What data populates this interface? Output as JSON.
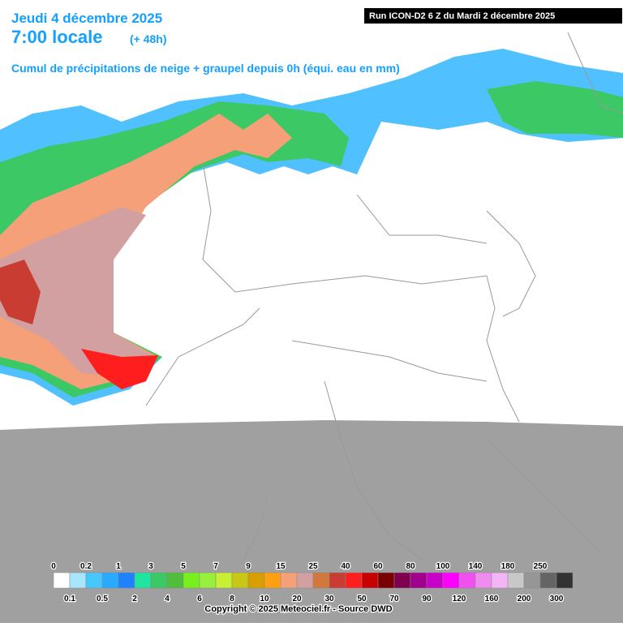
{
  "header": {
    "date": "Jeudi 4 décembre 2025",
    "time": "7:00 locale",
    "lead": "(+ 48h)",
    "subtitle": "Cumul de précipitations de neige + graupel depuis 0h (équi. eau en mm)",
    "run": "Run ICON-D2 6 Z du Mardi 2 décembre 2025"
  },
  "legend": {
    "items": [
      {
        "label": "0",
        "color": "#ffffff"
      },
      {
        "label": "0.1",
        "color": "#a6e6ff"
      },
      {
        "label": "0.2",
        "color": "#46c8ff"
      },
      {
        "label": "0.5",
        "color": "#2aaaff"
      },
      {
        "label": "1",
        "color": "#1e82ff"
      },
      {
        "label": "2",
        "color": "#1ee6a0"
      },
      {
        "label": "3",
        "color": "#3cc864"
      },
      {
        "label": "4",
        "color": "#50be3c"
      },
      {
        "label": "5",
        "color": "#78f01e"
      },
      {
        "label": "6",
        "color": "#96f03c"
      },
      {
        "label": "7",
        "color": "#c8f032"
      },
      {
        "label": "8",
        "color": "#c8c814"
      },
      {
        "label": "9",
        "color": "#d7a000"
      },
      {
        "label": "10",
        "color": "#ffa014"
      },
      {
        "label": "15",
        "color": "#f5a078"
      },
      {
        "label": "20",
        "color": "#d2a0a0"
      },
      {
        "label": "25",
        "color": "#d2783c"
      },
      {
        "label": "30",
        "color": "#c83c32"
      },
      {
        "label": "40",
        "color": "#ff1e1e"
      },
      {
        "label": "50",
        "color": "#c80000"
      },
      {
        "label": "60",
        "color": "#780000"
      },
      {
        "label": "70",
        "color": "#800050"
      },
      {
        "label": "80",
        "color": "#a0008c"
      },
      {
        "label": "90",
        "color": "#c800c8"
      },
      {
        "label": "100",
        "color": "#ff00ff"
      },
      {
        "label": "120",
        "color": "#f050f0"
      },
      {
        "label": "140",
        "color": "#f08cf0"
      },
      {
        "label": "160",
        "color": "#f5b4f5"
      },
      {
        "label": "180",
        "color": "#c8c8c8"
      },
      {
        "label": "200",
        "color": "#969696"
      },
      {
        "label": "250",
        "color": "#646464"
      },
      {
        "label": "300",
        "color": "#323232"
      }
    ]
  },
  "footer": {
    "copyright": "Copyright © 2025 Meteociel.fr - Source DWD"
  }
}
